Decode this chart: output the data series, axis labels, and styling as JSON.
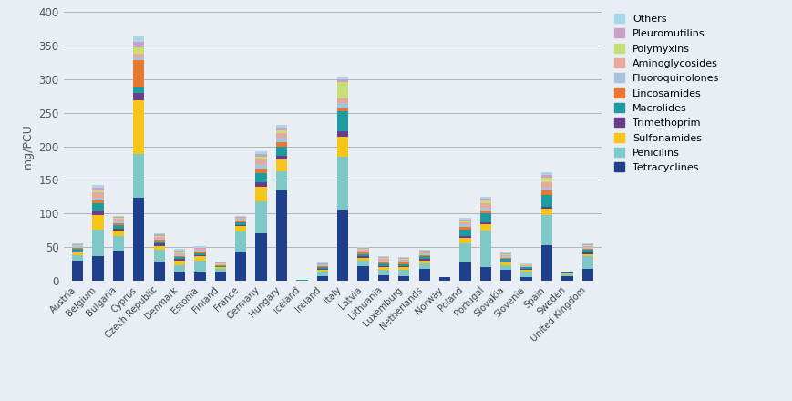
{
  "categories": [
    "Austria",
    "Belgium",
    "Bulgaria",
    "Cyprus",
    "Czech Republic",
    "Denmark",
    "Estonia",
    "Finland",
    "France",
    "Germany",
    "Hungary",
    "Iceland",
    "Ireland",
    "Italy",
    "Latvia",
    "Lithuania",
    "Luxemburg",
    "Netherlands",
    "Norway",
    "Poland",
    "Portugal",
    "Slovakia",
    "Slovenia",
    "Spain",
    "Sweden",
    "United Kingdom"
  ],
  "series": {
    "Tetracyclines": [
      30,
      36,
      45,
      123,
      28,
      13,
      12,
      13,
      43,
      70,
      135,
      0,
      7,
      106,
      22,
      8,
      7,
      18,
      5,
      27,
      20,
      16,
      5,
      53,
      7,
      18
    ],
    "Penicilins": [
      8,
      40,
      22,
      65,
      18,
      10,
      18,
      5,
      30,
      48,
      28,
      0,
      7,
      78,
      8,
      8,
      9,
      8,
      0,
      28,
      55,
      7,
      9,
      45,
      2,
      18
    ],
    "Sulfonamides": [
      4,
      22,
      8,
      80,
      6,
      7,
      6,
      2,
      8,
      22,
      18,
      0,
      2,
      30,
      4,
      4,
      4,
      4,
      0,
      9,
      9,
      4,
      2,
      9,
      2,
      4
    ],
    "Trimethoprim": [
      2,
      7,
      3,
      12,
      3,
      2,
      2,
      1,
      2,
      7,
      5,
      0,
      1,
      8,
      2,
      2,
      2,
      2,
      0,
      3,
      3,
      2,
      1,
      3,
      1,
      2
    ],
    "Macrolides": [
      3,
      10,
      5,
      8,
      4,
      3,
      3,
      1,
      4,
      13,
      13,
      2,
      4,
      30,
      4,
      4,
      3,
      4,
      0,
      9,
      13,
      3,
      3,
      18,
      1,
      4
    ],
    "Lincosamides": [
      2,
      4,
      3,
      40,
      2,
      2,
      2,
      1,
      2,
      7,
      7,
      0,
      1,
      5,
      2,
      2,
      2,
      2,
      0,
      4,
      4,
      2,
      1,
      7,
      0,
      2
    ],
    "Fluoroquinolones": [
      2,
      5,
      3,
      5,
      2,
      2,
      2,
      1,
      2,
      7,
      7,
      0,
      1,
      7,
      2,
      2,
      2,
      2,
      0,
      4,
      4,
      2,
      1,
      4,
      0,
      2
    ],
    "Aminoglycosides": [
      1,
      7,
      3,
      5,
      2,
      2,
      2,
      1,
      2,
      7,
      7,
      0,
      1,
      7,
      2,
      2,
      2,
      2,
      0,
      3,
      7,
      2,
      1,
      7,
      0,
      2
    ],
    "Polymyxins": [
      1,
      4,
      2,
      10,
      2,
      2,
      1,
      1,
      1,
      4,
      4,
      0,
      1,
      25,
      2,
      2,
      2,
      2,
      0,
      2,
      4,
      2,
      1,
      7,
      0,
      1
    ],
    "Pleuromutilins": [
      1,
      4,
      1,
      8,
      2,
      2,
      1,
      1,
      1,
      3,
      4,
      0,
      1,
      4,
      1,
      1,
      1,
      1,
      0,
      2,
      3,
      1,
      1,
      4,
      0,
      1
    ],
    "Others": [
      1,
      3,
      1,
      8,
      2,
      2,
      2,
      1,
      1,
      4,
      4,
      0,
      1,
      4,
      1,
      1,
      1,
      1,
      0,
      2,
      3,
      2,
      1,
      4,
      0,
      2
    ]
  },
  "colors": {
    "Tetracyclines": "#1F3E8C",
    "Penicilins": "#7EC8C8",
    "Sulfonamides": "#F5C518",
    "Trimethoprim": "#6A3C8C",
    "Macrolides": "#1A9CA0",
    "Lincosamides": "#E87830",
    "Fluoroquinolones": "#A8C4DC",
    "Aminoglycosides": "#E8A89C",
    "Polymyxins": "#C8DC78",
    "Pleuromutilins": "#C8A0C8",
    "Others": "#A8D8E8"
  },
  "legend_order": [
    "Others",
    "Pleuromutilins",
    "Polymyxins",
    "Aminoglycosides",
    "Fluoroquinolones",
    "Lincosamides",
    "Macrolides",
    "Trimethoprim",
    "Sulfonamides",
    "Penicilins",
    "Tetracyclines"
  ],
  "ylabel": "mg/PCU",
  "ylim": [
    0,
    400
  ],
  "yticks": [
    0,
    50,
    100,
    150,
    200,
    250,
    300,
    350,
    400
  ],
  "background_color": "#E8EEF4",
  "bar_width": 0.55
}
